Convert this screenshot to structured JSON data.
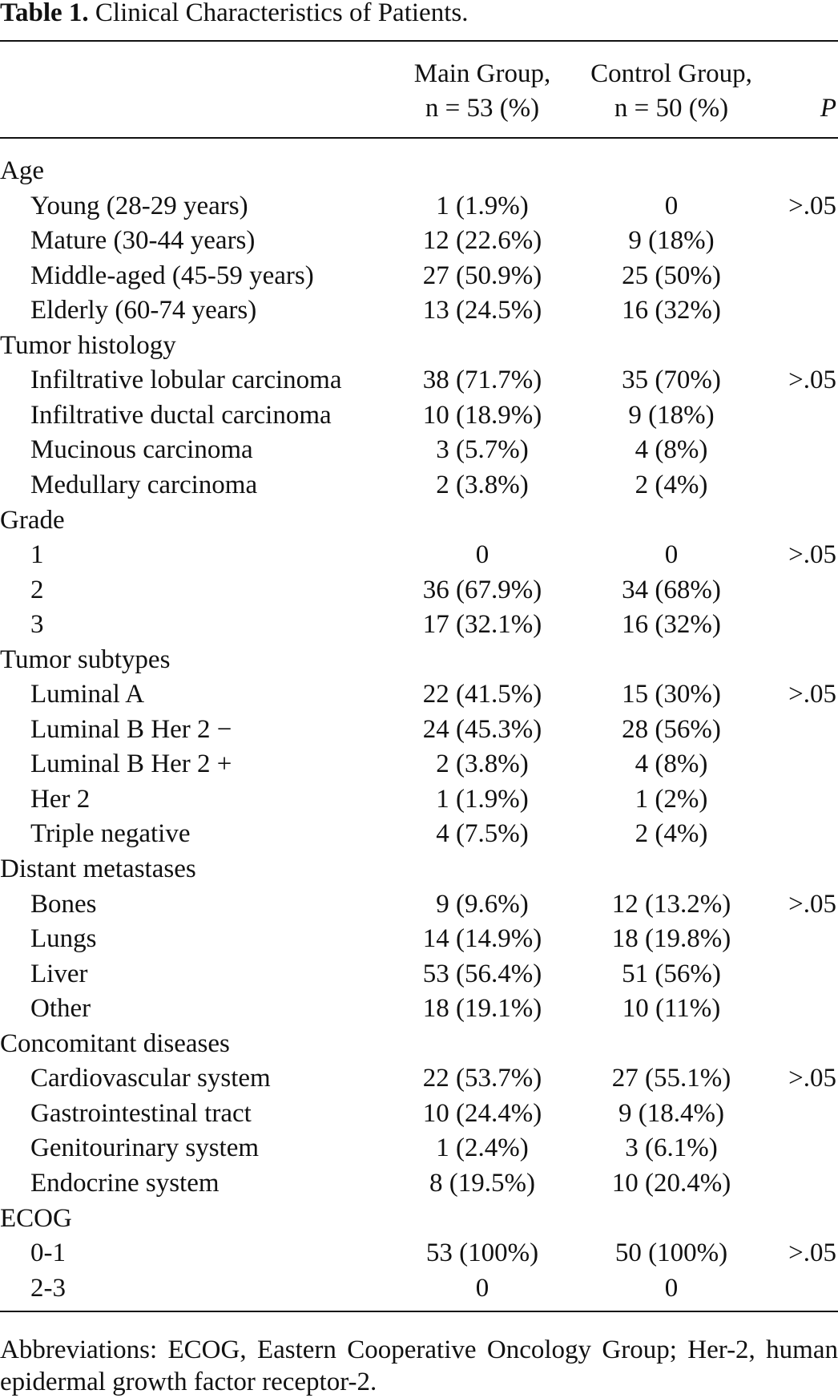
{
  "title": {
    "label": "Table 1.",
    "text": "Clinical Characteristics of Patients."
  },
  "columns": [
    [
      "Main Group,",
      "n = 53 (%)"
    ],
    [
      "Control Group,",
      "n = 50 (%)"
    ],
    [
      "P"
    ]
  ],
  "sections": [
    {
      "title": "Age",
      "rows": [
        [
          "Young (28-29 years)",
          "1 (1.9%)",
          "0",
          ">.05"
        ],
        [
          "Mature (30-44 years)",
          "12 (22.6%)",
          "9 (18%)"
        ],
        [
          "Middle-aged (45-59 years)",
          "27 (50.9%)",
          "25 (50%)"
        ],
        [
          "Elderly (60-74 years)",
          "13 (24.5%)",
          "16 (32%)"
        ]
      ]
    },
    {
      "title": "Tumor histology",
      "rows": [
        [
          "Infiltrative lobular carcinoma",
          "38 (71.7%)",
          "35 (70%)",
          ">.05"
        ],
        [
          "Infiltrative ductal carcinoma",
          "10 (18.9%)",
          "9 (18%)"
        ],
        [
          "Mucinous carcinoma",
          "3 (5.7%)",
          "4 (8%)"
        ],
        [
          "Medullary carcinoma",
          "2 (3.8%)",
          "2 (4%)"
        ]
      ]
    },
    {
      "title": "Grade",
      "rows": [
        [
          "1",
          "0",
          "0",
          ">.05"
        ],
        [
          "2",
          "36 (67.9%)",
          "34 (68%)"
        ],
        [
          "3",
          "17 (32.1%)",
          "16 (32%)"
        ]
      ]
    },
    {
      "title": "Tumor subtypes",
      "rows": [
        [
          "Luminal A",
          "22 (41.5%)",
          "15 (30%)",
          ">.05"
        ],
        [
          "Luminal B Her 2 −",
          "24 (45.3%)",
          "28 (56%)"
        ],
        [
          "Luminal B Her 2 +",
          "2 (3.8%)",
          "4 (8%)"
        ],
        [
          "Her 2",
          "1 (1.9%)",
          "1 (2%)"
        ],
        [
          "Triple negative",
          "4 (7.5%)",
          "2 (4%)"
        ]
      ]
    },
    {
      "title": "Distant metastases",
      "rows": [
        [
          "Bones",
          "9 (9.6%)",
          "12 (13.2%)",
          ">.05"
        ],
        [
          "Lungs",
          "14 (14.9%)",
          "18 (19.8%)"
        ],
        [
          "Liver",
          "53 (56.4%)",
          "51 (56%)"
        ],
        [
          "Other",
          "18 (19.1%)",
          "10 (11%)"
        ]
      ]
    },
    {
      "title": "Concomitant diseases",
      "rows": [
        [
          "Cardiovascular system",
          "22 (53.7%)",
          "27 (55.1%)",
          ">.05"
        ],
        [
          "Gastrointestinal tract",
          "10 (24.4%)",
          "9 (18.4%)"
        ],
        [
          "Genitourinary system",
          "1 (2.4%)",
          "3 (6.1%)"
        ],
        [
          "Endocrine system",
          "8 (19.5%)",
          "10 (20.4%)"
        ]
      ]
    },
    {
      "title": "ECOG",
      "rows": [
        [
          "0-1",
          "53 (100%)",
          "50 (100%)",
          ">.05"
        ],
        [
          "2-3",
          "0",
          "0"
        ]
      ]
    }
  ],
  "footnote": "Abbreviations: ECOG, Eastern Cooperative Oncology Group; Her-2, human epidermal growth factor receptor-2."
}
